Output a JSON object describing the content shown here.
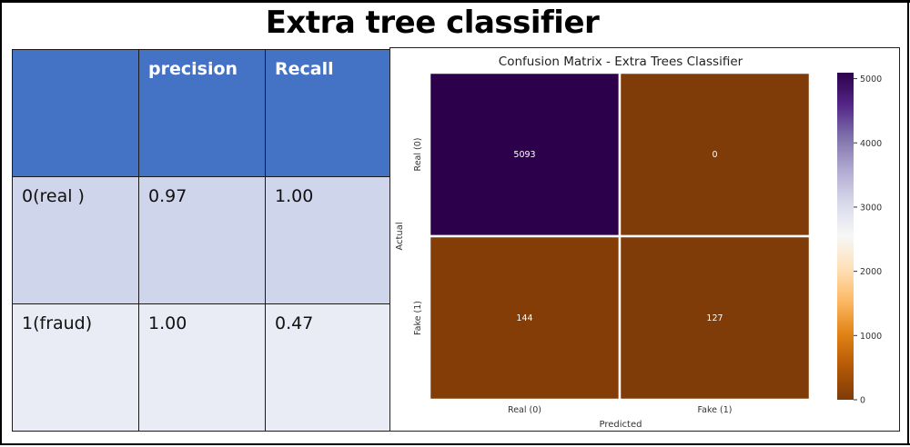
{
  "slide": {
    "title": "Extra tree classifier"
  },
  "metrics_table": {
    "headers": [
      "",
      "precision",
      "Recall"
    ],
    "rows": [
      {
        "label": "0(real )",
        "precision": "0.97",
        "recall": "1.00"
      },
      {
        "label": "1(fraud)",
        "precision": "1.00",
        "recall": "0.47"
      }
    ]
  },
  "chart_data": {
    "type": "heatmap",
    "title": "Confusion Matrix - Extra Trees Classifier",
    "xlabel": "Predicted",
    "ylabel": "Actual",
    "x_categories": [
      "Real (0)",
      "Fake (1)"
    ],
    "y_categories": [
      "Real (0)",
      "Fake (1)"
    ],
    "values": [
      [
        5093,
        0
      ],
      [
        144,
        127
      ]
    ],
    "colorbar": {
      "colormap": "PuOr",
      "range": [
        0,
        5093
      ],
      "ticks": [
        0,
        1000,
        2000,
        3000,
        4000,
        5000
      ]
    },
    "colors": {
      "cell_high": "#2d004b",
      "cell_low": "#7f3b08",
      "cell_low_alt": "#843d07",
      "cell_text": "#ffffff"
    }
  }
}
